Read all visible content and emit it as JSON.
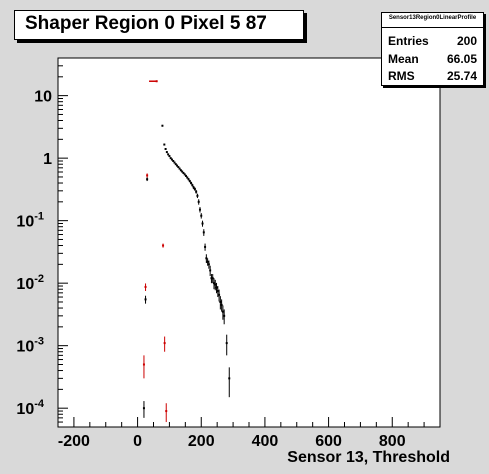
{
  "chart_data": {
    "type": "scatter",
    "title": "Shaper Region 0 Pixel 5 87",
    "xlabel": "Sensor 13, Threshold",
    "ylabel": "",
    "y_scale": "log",
    "xlim": [
      -250,
      950
    ],
    "ylim": [
      5e-05,
      40
    ],
    "x_ticks": [
      "-200",
      "0",
      "200",
      "400",
      "600",
      "800"
    ],
    "x_tick_values": [
      -200,
      0,
      200,
      400,
      600,
      800
    ],
    "y_ticks": [
      "10",
      "1",
      "10^-1",
      "10^-2",
      "10^-3",
      "10^-4"
    ],
    "y_tick_values": [
      10,
      1,
      0.1,
      0.01,
      0.001,
      0.0001
    ],
    "stats": {
      "name": "Sensor13Region0LinearProfile",
      "rows": [
        {
          "label": "Entries",
          "value": "200"
        },
        {
          "label": "Mean",
          "value": "66.05"
        },
        {
          "label": "RMS",
          "value": "25.74"
        }
      ]
    },
    "series": [
      {
        "color": "#000000",
        "points": [
          [
            20,
            0.0001,
            3e-05
          ],
          [
            25,
            0.0055,
            0.0008
          ],
          [
            30,
            0.46,
            0.03
          ],
          [
            78,
            3.3,
            0.1
          ],
          [
            84,
            1.65,
            0.05
          ],
          [
            88,
            1.4,
            0.04
          ],
          [
            92,
            1.25,
            0.04
          ],
          [
            96,
            1.15,
            0.03
          ],
          [
            100,
            1.08,
            0.03
          ],
          [
            104,
            1.0,
            0.03
          ],
          [
            108,
            0.95,
            0.03
          ],
          [
            112,
            0.9,
            0.02
          ],
          [
            116,
            0.85,
            0.02
          ],
          [
            120,
            0.8,
            0.02
          ],
          [
            124,
            0.76,
            0.02
          ],
          [
            128,
            0.72,
            0.02
          ],
          [
            132,
            0.68,
            0.02
          ],
          [
            136,
            0.64,
            0.02
          ],
          [
            140,
            0.61,
            0.02
          ],
          [
            144,
            0.58,
            0.02
          ],
          [
            148,
            0.55,
            0.02
          ],
          [
            152,
            0.52,
            0.02
          ],
          [
            156,
            0.49,
            0.02
          ],
          [
            160,
            0.46,
            0.02
          ],
          [
            164,
            0.43,
            0.02
          ],
          [
            168,
            0.4,
            0.02
          ],
          [
            172,
            0.37,
            0.02
          ],
          [
            176,
            0.34,
            0.02
          ],
          [
            180,
            0.32,
            0.02
          ],
          [
            184,
            0.29,
            0.02
          ],
          [
            188,
            0.25,
            0.02
          ],
          [
            192,
            0.2,
            0.02
          ],
          [
            196,
            0.15,
            0.015
          ],
          [
            200,
            0.12,
            0.012
          ],
          [
            204,
            0.09,
            0.01
          ],
          [
            208,
            0.065,
            0.008
          ],
          [
            212,
            0.038,
            0.005
          ],
          [
            216,
            0.025,
            0.004
          ],
          [
            220,
            0.022,
            0.003
          ],
          [
            224,
            0.02,
            0.003
          ],
          [
            228,
            0.016,
            0.003
          ],
          [
            232,
            0.012,
            0.002
          ],
          [
            236,
            0.012,
            0.002
          ],
          [
            240,
            0.01,
            0.002
          ],
          [
            244,
            0.0095,
            0.0018
          ],
          [
            248,
            0.0085,
            0.0016
          ],
          [
            252,
            0.0075,
            0.0015
          ],
          [
            256,
            0.0065,
            0.0014
          ],
          [
            260,
            0.005,
            0.0012
          ],
          [
            264,
            0.0045,
            0.001
          ],
          [
            268,
            0.0035,
            0.0009
          ],
          [
            272,
            0.003,
            0.0008
          ],
          [
            280,
            0.0011,
            0.0004
          ],
          [
            288,
            0.0003,
            0.00015
          ]
        ]
      },
      {
        "color": "#cc0000",
        "points": [
          [
            20,
            0.0005,
            0.0002
          ],
          [
            25,
            0.0087,
            0.0012
          ],
          [
            30,
            0.53,
            0.04
          ],
          [
            60,
            17,
            0.5
          ],
          [
            80,
            0.04,
            0.003
          ],
          [
            85,
            0.0011,
            0.0003
          ],
          [
            90,
            9e-05,
            3e-05
          ]
        ],
        "segments": [
          [
            36,
            60,
            17
          ]
        ]
      }
    ]
  }
}
